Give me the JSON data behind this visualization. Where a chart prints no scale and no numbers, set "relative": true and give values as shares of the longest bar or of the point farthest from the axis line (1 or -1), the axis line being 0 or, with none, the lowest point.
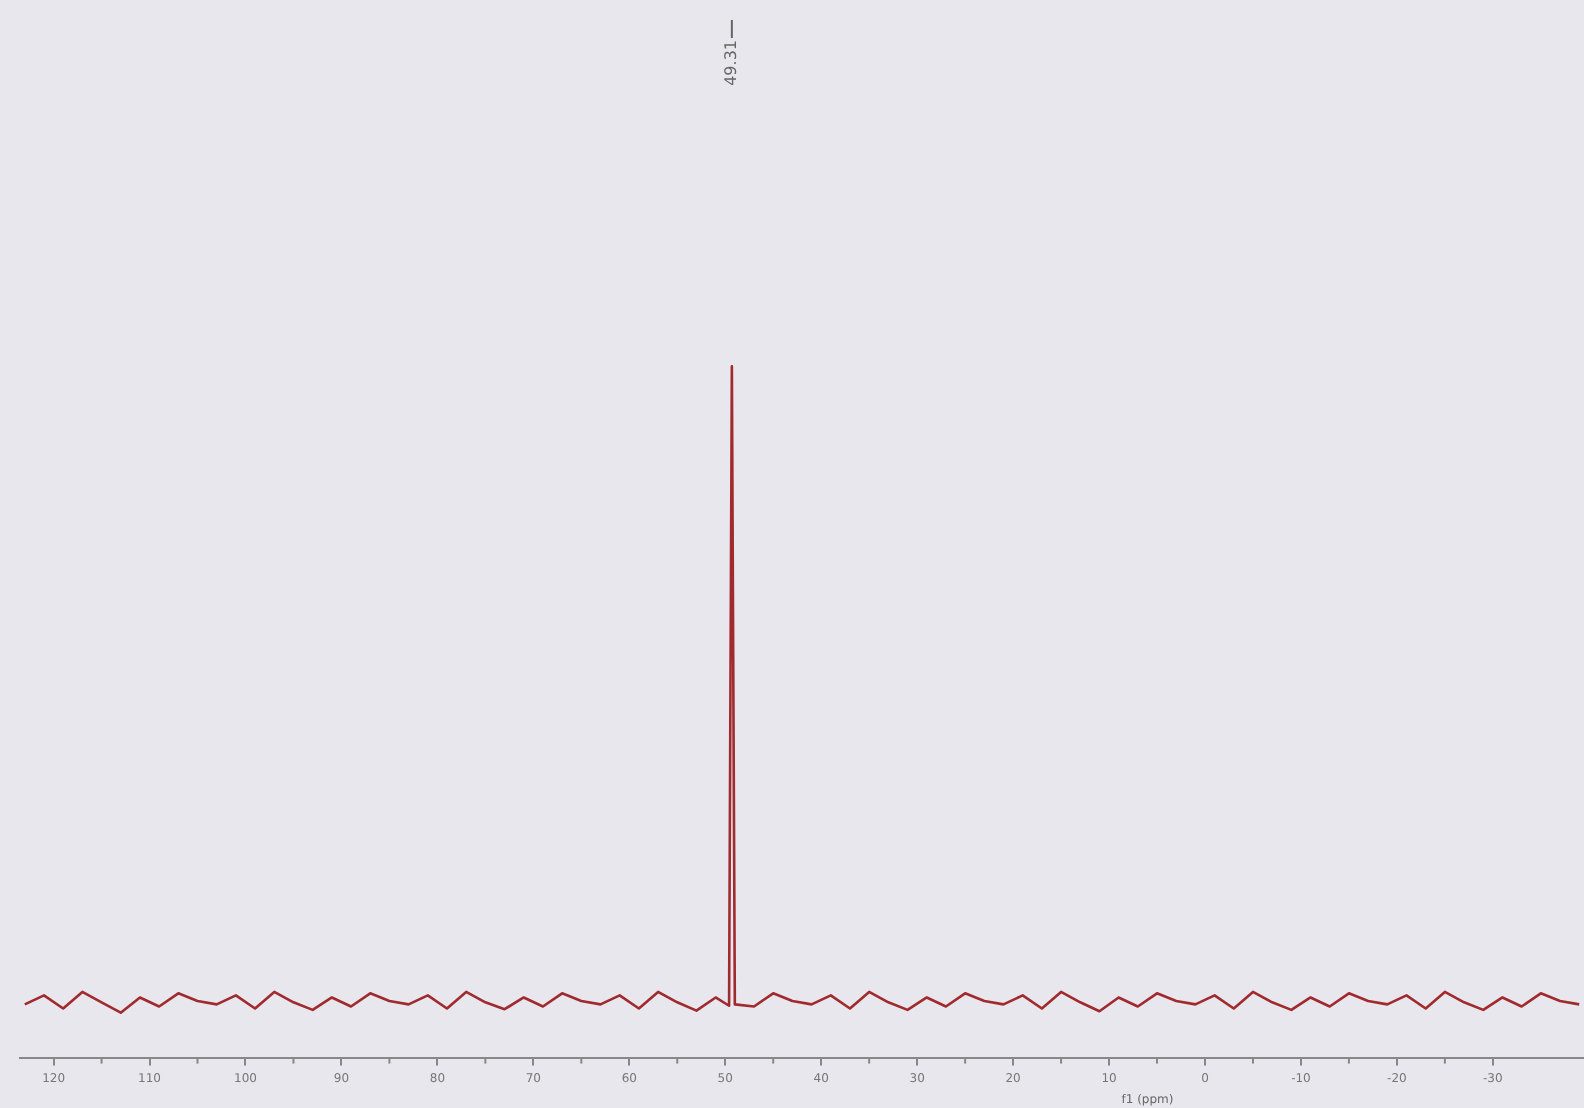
{
  "chart_data": {
    "type": "line",
    "xlabel": "f1 (ppm)",
    "relative": true,
    "tick_labels": "x",
    "grid": false,
    "legend": false,
    "marker": "none",
    "xlim": [
      123.5,
      -39.5
    ],
    "xticks": [
      120,
      110,
      100,
      90,
      80,
      70,
      60,
      50,
      40,
      30,
      20,
      10,
      0,
      -10,
      -20,
      -30
    ],
    "annotations": [
      {
        "text": "49.31",
        "x": 49.31
      }
    ],
    "series": [
      {
        "color": "#a12a2e",
        "x": [
          123,
          121,
          119,
          117,
          115,
          113,
          111,
          109,
          107,
          105,
          103,
          101,
          99,
          97,
          95,
          93,
          91,
          89,
          87,
          85,
          83,
          81,
          79,
          77,
          75,
          73,
          71,
          69,
          67,
          65,
          63,
          61,
          59,
          57,
          55,
          53,
          51,
          49.6,
          49.31,
          49,
          47,
          45,
          43,
          41,
          39,
          37,
          35,
          33,
          31,
          29,
          27,
          25,
          23,
          21,
          19,
          17,
          15,
          13,
          11,
          9,
          7,
          5,
          3,
          1,
          -1,
          -3,
          -5,
          -7,
          -9,
          -11,
          -13,
          -15,
          -17,
          -19,
          -21,
          -23,
          -25,
          -27,
          -29,
          -31,
          -33,
          -35,
          -37,
          -39
        ],
        "values": [
          0.077,
          0.09,
          0.071,
          0.095,
          0.08,
          0.065,
          0.087,
          0.074,
          0.093,
          0.082,
          0.077,
          0.09,
          0.071,
          0.095,
          0.08,
          0.069,
          0.087,
          0.074,
          0.093,
          0.082,
          0.077,
          0.09,
          0.071,
          0.095,
          0.08,
          0.07,
          0.087,
          0.074,
          0.093,
          0.082,
          0.077,
          0.09,
          0.071,
          0.095,
          0.08,
          0.068,
          0.087,
          0.075,
          1,
          0.077,
          0.074,
          0.093,
          0.082,
          0.077,
          0.09,
          0.071,
          0.095,
          0.08,
          0.069,
          0.087,
          0.074,
          0.093,
          0.082,
          0.077,
          0.09,
          0.071,
          0.095,
          0.08,
          0.067,
          0.087,
          0.074,
          0.093,
          0.082,
          0.077,
          0.09,
          0.071,
          0.095,
          0.08,
          0.069,
          0.087,
          0.074,
          0.093,
          0.082,
          0.077,
          0.09,
          0.071,
          0.095,
          0.08,
          0.069,
          0.087,
          0.074,
          0.093,
          0.082,
          0.077
        ]
      }
    ]
  }
}
